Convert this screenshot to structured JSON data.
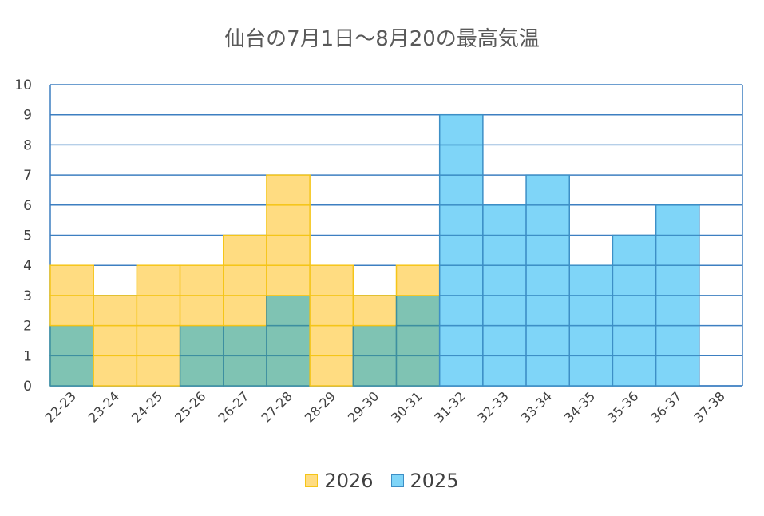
{
  "chart_data": {
    "type": "bar",
    "title": "仙台の7月1日〜8月20の最高気温",
    "categories": [
      "22-23",
      "23-24",
      "24-25",
      "25-26",
      "26-27",
      "27-28",
      "28-29",
      "29-30",
      "30-31",
      "31-32",
      "32-33",
      "33-34",
      "34-35",
      "35-36",
      "36-37",
      "37-38"
    ],
    "series": [
      {
        "name": "2026",
        "values": [
          4,
          3,
          4,
          4,
          5,
          7,
          4,
          3,
          4,
          0,
          0,
          0,
          0,
          0,
          0,
          0
        ],
        "fill": "#FFDC81",
        "stroke": "#F5C518"
      },
      {
        "name": "2025",
        "values": [
          2,
          0,
          0,
          2,
          2,
          3,
          0,
          2,
          3,
          9,
          6,
          7,
          4,
          5,
          6,
          0
        ],
        "fill": "#7FD5F8",
        "stroke": "#3D8FC6"
      }
    ],
    "overlap_fill": "#7FC3B3",
    "overlap_stroke": "#3D8FA0",
    "ylim": [
      0,
      10
    ],
    "yticks": [
      0,
      1,
      2,
      3,
      4,
      5,
      6,
      7,
      8,
      9,
      10
    ],
    "grid": true,
    "grid_color": "#3D7FC1",
    "legend_position": "bottom"
  }
}
